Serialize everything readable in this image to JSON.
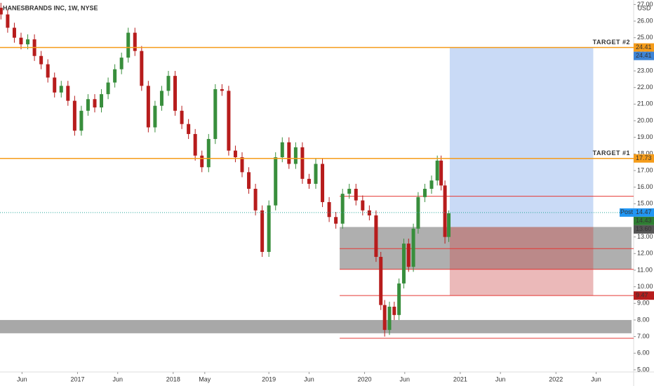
{
  "chart_data": {
    "type": "candlestick",
    "title": "HANESBRANDS INC, 1W, NYSE",
    "currency": "USD",
    "xlim": [
      2016.19,
      2022.79
    ],
    "ylim": [
      4.87,
      27.27
    ],
    "xticks": [
      {
        "value": 2016.42,
        "label": "Jun"
      },
      2017,
      {
        "value": 2017.42,
        "label": "Jun"
      },
      2018,
      {
        "value": 2018.33,
        "label": "May"
      },
      2019,
      {
        "value": 2019.42,
        "label": "Jun"
      },
      2020,
      {
        "value": 2020.42,
        "label": "Jun"
      },
      2021,
      {
        "value": 2021.42,
        "label": "Jun"
      },
      2022,
      {
        "value": 2022.42,
        "label": "Jun"
      }
    ],
    "yticks": [
      {
        "value": 5,
        "label": "5.00"
      },
      {
        "value": 6,
        "label": "6.00"
      },
      {
        "value": 7,
        "label": "7.00"
      },
      {
        "value": 8,
        "label": "8.00"
      },
      {
        "value": 9,
        "label": "9.00"
      },
      {
        "value": 10,
        "label": "10.00"
      },
      {
        "value": 11,
        "label": "11.00"
      },
      {
        "value": 12,
        "label": "12.00"
      },
      {
        "value": 13,
        "label": "13.00"
      },
      {
        "value": 14,
        "label": "14.00"
      },
      {
        "value": 15,
        "label": "15.00"
      },
      {
        "value": 16,
        "label": "16.00"
      },
      {
        "value": 17,
        "label": "17.00"
      },
      {
        "value": 18,
        "label": "18.00"
      },
      {
        "value": 19,
        "label": "19.00"
      },
      {
        "value": 20,
        "label": "20.00"
      },
      {
        "value": 21,
        "label": "21.00"
      },
      {
        "value": 22,
        "label": "22.00"
      },
      {
        "value": 23,
        "label": "23.00"
      },
      {
        "value": 24,
        "label": "24.00"
      },
      {
        "value": 25,
        "label": "25.00"
      },
      {
        "value": 26,
        "label": "26.00"
      },
      {
        "value": 27,
        "label": "27.00"
      }
    ],
    "up_color": "#388e3c",
    "down_color": "#b71c1c",
    "x": [
      2016.2,
      2016.27,
      2016.34,
      2016.41,
      2016.48,
      2016.55,
      2016.62,
      2016.69,
      2016.76,
      2016.83,
      2016.9,
      2016.97,
      2017.04,
      2017.11,
      2017.18,
      2017.25,
      2017.32,
      2017.39,
      2017.46,
      2017.53,
      2017.6,
      2017.67,
      2017.74,
      2017.81,
      2017.88,
      2017.95,
      2018.02,
      2018.09,
      2018.16,
      2018.23,
      2018.3,
      2018.37,
      2018.44,
      2018.51,
      2018.58,
      2018.65,
      2018.72,
      2018.79,
      2018.86,
      2018.93,
      2019.0,
      2019.07,
      2019.14,
      2019.21,
      2019.28,
      2019.35,
      2019.42,
      2019.49,
      2019.56,
      2019.63,
      2019.7,
      2019.77,
      2019.84,
      2019.91,
      2019.98,
      2020.05,
      2020.12,
      2020.17,
      2020.21,
      2020.26,
      2020.31,
      2020.36,
      2020.41,
      2020.46,
      2020.51,
      2020.56,
      2020.63,
      2020.7,
      2020.76,
      2020.8,
      2020.84,
      2020.88
    ],
    "open": [
      26.8,
      26.4,
      25.6,
      25.0,
      24.6,
      24.9,
      23.9,
      23.4,
      22.6,
      21.7,
      22.1,
      21.2,
      19.4,
      20.6,
      21.3,
      20.8,
      21.6,
      22.3,
      23.1,
      23.8,
      25.3,
      24.2,
      22.1,
      19.6,
      20.9,
      21.8,
      22.7,
      20.6,
      19.8,
      19.2,
      17.9,
      17.2,
      18.9,
      21.9,
      21.8,
      18.2,
      17.8,
      16.9,
      15.9,
      14.6,
      12.1,
      14.9,
      17.8,
      18.7,
      17.4,
      18.4,
      16.5,
      16.2,
      17.4,
      15.1,
      14.2,
      13.8,
      15.6,
      15.9,
      15.2,
      14.6,
      14.3,
      11.8,
      8.9,
      7.4,
      8.8,
      8.3,
      10.2,
      12.6,
      11.2,
      13.5,
      15.4,
      15.9,
      16.4,
      17.6,
      16.1,
      13.0
    ],
    "high": [
      27.1,
      26.7,
      25.9,
      25.3,
      25.2,
      25.2,
      24.2,
      23.7,
      22.9,
      22.4,
      22.4,
      21.5,
      20.9,
      21.6,
      21.6,
      21.9,
      22.6,
      23.4,
      24.1,
      25.6,
      25.6,
      24.5,
      22.4,
      21.2,
      22.1,
      23.0,
      23.0,
      20.9,
      20.1,
      19.5,
      18.2,
      19.2,
      22.2,
      22.2,
      22.1,
      18.5,
      18.1,
      17.2,
      16.2,
      14.9,
      15.2,
      18.1,
      19.0,
      19.0,
      18.7,
      18.7,
      16.8,
      17.7,
      17.7,
      15.4,
      14.5,
      15.9,
      16.2,
      16.2,
      15.5,
      14.9,
      14.6,
      12.1,
      9.2,
      9.1,
      9.1,
      10.5,
      12.9,
      12.9,
      13.8,
      15.7,
      16.2,
      16.7,
      17.9,
      17.9,
      16.4,
      14.6
    ],
    "low": [
      26.1,
      25.3,
      24.7,
      24.3,
      24.3,
      23.6,
      23.1,
      22.3,
      21.4,
      21.4,
      20.9,
      19.1,
      19.1,
      20.3,
      20.5,
      20.5,
      21.3,
      22.0,
      22.8,
      23.5,
      23.9,
      21.8,
      19.3,
      19.3,
      20.6,
      21.5,
      20.3,
      19.5,
      18.9,
      17.6,
      16.9,
      16.9,
      18.6,
      21.5,
      17.9,
      17.5,
      16.6,
      15.6,
      14.3,
      11.8,
      11.8,
      14.6,
      17.5,
      17.1,
      17.1,
      16.2,
      15.9,
      15.9,
      14.8,
      13.9,
      13.5,
      13.5,
      15.3,
      14.9,
      14.3,
      14.0,
      11.5,
      8.6,
      7.0,
      7.1,
      8.0,
      8.0,
      9.9,
      10.9,
      10.9,
      13.2,
      15.1,
      15.6,
      16.1,
      15.8,
      12.6,
      12.7
    ],
    "close": [
      26.4,
      25.6,
      25.0,
      24.6,
      24.9,
      23.9,
      23.4,
      22.6,
      21.7,
      22.1,
      21.2,
      19.4,
      20.6,
      21.3,
      20.8,
      21.6,
      22.3,
      23.1,
      23.8,
      25.3,
      24.2,
      22.1,
      19.6,
      20.9,
      21.8,
      22.7,
      20.6,
      19.8,
      19.2,
      17.9,
      17.2,
      18.9,
      21.9,
      21.8,
      18.2,
      17.8,
      16.9,
      15.9,
      14.6,
      12.1,
      14.9,
      17.8,
      18.7,
      17.4,
      18.4,
      16.5,
      16.2,
      17.4,
      15.1,
      14.2,
      13.8,
      15.6,
      15.9,
      15.2,
      14.6,
      14.3,
      11.8,
      8.9,
      7.4,
      8.8,
      8.3,
      10.2,
      12.6,
      11.2,
      13.5,
      15.4,
      15.9,
      16.4,
      17.6,
      16.1,
      13.0,
      14.43
    ],
    "zones": [
      {
        "x0": 2019.74,
        "x1": 2022.79,
        "y0": 11.05,
        "y1": 13.6,
        "color": "rgba(110,110,110,0.55)"
      },
      {
        "x0": 2016.19,
        "x1": 2022.79,
        "y0": 7.2,
        "y1": 8.0,
        "color": "rgba(110,110,110,0.6)"
      },
      {
        "x0": 2020.89,
        "x1": 2022.39,
        "y0": 13.6,
        "y1": 24.41,
        "color": "rgba(100,150,230,0.35)"
      },
      {
        "x0": 2020.89,
        "x1": 2022.39,
        "y0": 9.47,
        "y1": 13.6,
        "color": "rgba(205,80,80,0.4)"
      }
    ],
    "targets": [
      {
        "value": 24.41,
        "text": "TARGET #2",
        "color": "#f59c1a"
      },
      {
        "value": 17.73,
        "text": "TARGET #1",
        "color": "#f59c1a"
      }
    ],
    "levels": {
      "x0": 2019.74,
      "values": [
        15.45,
        12.3,
        11.05,
        9.47,
        6.9
      ],
      "color": "#e53935"
    },
    "last_price": {
      "value": 14.47,
      "color": "#26a69a",
      "tag": "Post"
    },
    "price_labels": [
      {
        "value": 24.41,
        "color": "#f59c1a"
      },
      {
        "value": 24.41,
        "color": "#3d84d6"
      },
      {
        "value": 17.73,
        "color": "#f59c1a"
      },
      {
        "value": 14.47,
        "color": "#2196f3"
      },
      {
        "value": 14.43,
        "color": "#2e7d32"
      },
      {
        "value": 13.6,
        "label": "13.60",
        "color": "#555555"
      },
      {
        "value": 9.47,
        "color": "#b71c1c"
      }
    ]
  }
}
